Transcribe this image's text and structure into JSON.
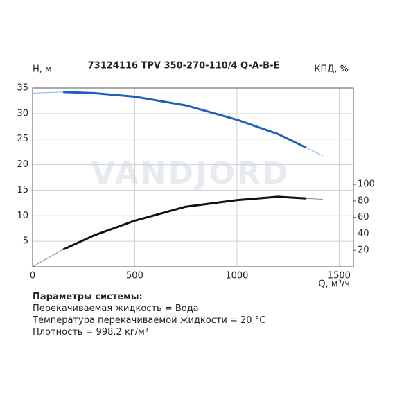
{
  "chart_data": {
    "type": "line",
    "title": "73124116 TPV 350-270-110/4 Q-A-B-E",
    "watermark": "VANDJORD",
    "y_label": "H, м",
    "y2_label": "КПД, %",
    "x_label": "Q, м³/ч",
    "xlim": [
      0,
      1570
    ],
    "xticks": [
      0,
      500,
      1000,
      1500
    ],
    "ylim": [
      0,
      35
    ],
    "yticks": [
      5,
      10,
      15,
      20,
      25,
      30,
      35
    ],
    "y2lim": [
      0,
      217
    ],
    "y2ticks": [
      20,
      40,
      60,
      80,
      100
    ],
    "grid": true,
    "series": [
      {
        "name": "H",
        "color": "#1f5fbf",
        "x": [
          0,
          150,
          300,
          500,
          750,
          1000,
          1200,
          1340,
          1420
        ],
        "values": [
          34.0,
          34.2,
          34.0,
          33.3,
          31.6,
          28.8,
          26.0,
          23.3,
          21.7
        ]
      },
      {
        "name": "КПД",
        "color": "#111111",
        "axis": "y2",
        "x": [
          0,
          150,
          300,
          500,
          750,
          1000,
          1200,
          1340,
          1420
        ],
        "values": [
          0,
          21,
          38,
          56,
          73,
          81,
          85,
          83,
          82
        ]
      }
    ]
  },
  "info": {
    "heading": "Параметры системы:",
    "lines": [
      "Перекачиваемая жидкость = Вода",
      "Температура перекачиваемой жидкости = 20 °C",
      "Плотность = 998.2 кг/м³"
    ]
  }
}
